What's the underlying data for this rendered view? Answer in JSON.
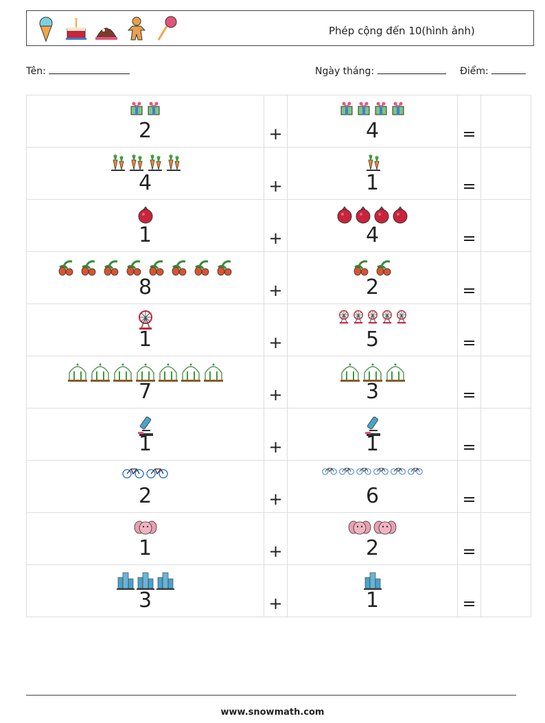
{
  "header": {
    "title": "Phép cộng đến 10(hình ảnh)",
    "icons": [
      "ice-cream-icon",
      "birthday-cake-icon",
      "chocolate-cake-icon",
      "gingerbread-man-icon",
      "lollipop-icon"
    ]
  },
  "meta": {
    "name_label": "Tên:",
    "date_label": "Ngày tháng:",
    "score_label": "Điểm:"
  },
  "symbols": {
    "plus": "+",
    "equals": "="
  },
  "problems": [
    {
      "a": "2",
      "a_icon": "gift-icon",
      "b": "4",
      "b_icon": "gift-icon"
    },
    {
      "a": "4",
      "a_icon": "carrot-icon",
      "b": "1",
      "b_icon": "carrot-icon"
    },
    {
      "a": "1",
      "a_icon": "pomegranate-icon",
      "b": "4",
      "b_icon": "pomegranate-icon"
    },
    {
      "a": "8",
      "a_icon": "ginger-icon",
      "b": "2",
      "b_icon": "ginger-icon"
    },
    {
      "a": "1",
      "a_icon": "ferris-wheel-icon",
      "b": "5",
      "b_icon": "ferris-wheel-icon"
    },
    {
      "a": "7",
      "a_icon": "greenhouse-icon",
      "b": "3",
      "b_icon": "greenhouse-icon"
    },
    {
      "a": "1",
      "a_icon": "microscope-icon",
      "b": "1",
      "b_icon": "microscope-icon"
    },
    {
      "a": "2",
      "a_icon": "bicycle-icon",
      "b": "6",
      "b_icon": "bicycle-icon"
    },
    {
      "a": "1",
      "a_icon": "elephant-face-icon",
      "b": "2",
      "b_icon": "elephant-face-icon"
    },
    {
      "a": "3",
      "a_icon": "office-building-icon",
      "b": "1",
      "b_icon": "office-building-icon"
    }
  ],
  "footer": {
    "website": "www.snowmath.com"
  }
}
